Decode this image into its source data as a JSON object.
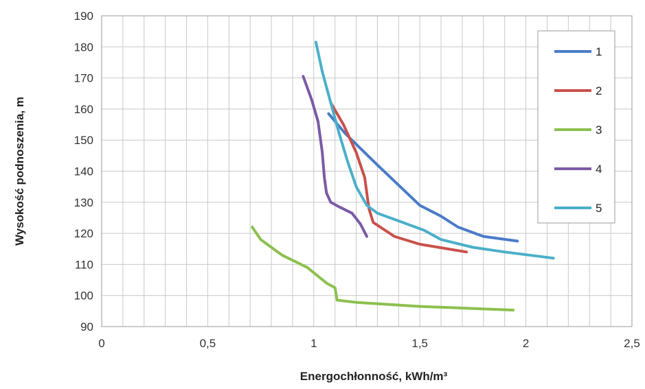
{
  "chart_data": {
    "type": "line",
    "xlabel": "Energochłonność, kWh/m³",
    "ylabel": "Wysokość podnoszenia, m",
    "xlim": [
      0,
      2.5
    ],
    "ylim": [
      90,
      190
    ],
    "x_ticks": [
      "0",
      "0,5",
      "1",
      "1,5",
      "2",
      "2,5"
    ],
    "x_tick_values": [
      0,
      0.5,
      1,
      1.5,
      2,
      2.5
    ],
    "y_ticks": [
      "90",
      "100",
      "110",
      "120",
      "130",
      "140",
      "150",
      "160",
      "170",
      "180",
      "190"
    ],
    "y_tick_values": [
      90,
      100,
      110,
      120,
      130,
      140,
      150,
      160,
      170,
      180,
      190
    ],
    "grid": {
      "x_step": 0.1,
      "y_step": 10
    },
    "legend_position": "right",
    "series": [
      {
        "name": "1",
        "color": "#4a7bc8",
        "points": [
          [
            1.07,
            158.5
          ],
          [
            1.15,
            152
          ],
          [
            1.3,
            142
          ],
          [
            1.5,
            129
          ],
          [
            1.6,
            125.5
          ],
          [
            1.68,
            122
          ],
          [
            1.8,
            119
          ],
          [
            1.96,
            117.5
          ]
        ]
      },
      {
        "name": "2",
        "color": "#c9504a",
        "points": [
          [
            1.08,
            162
          ],
          [
            1.14,
            155
          ],
          [
            1.2,
            146
          ],
          [
            1.24,
            138
          ],
          [
            1.26,
            128
          ],
          [
            1.28,
            123.5
          ],
          [
            1.38,
            119
          ],
          [
            1.5,
            116.5
          ],
          [
            1.72,
            114
          ]
        ]
      },
      {
        "name": "3",
        "color": "#8dc04f",
        "points": [
          [
            0.71,
            122
          ],
          [
            0.75,
            118
          ],
          [
            0.85,
            113
          ],
          [
            0.97,
            109
          ],
          [
            1.06,
            104
          ],
          [
            1.1,
            102.5
          ],
          [
            1.11,
            98.5
          ],
          [
            1.2,
            97.8
          ],
          [
            1.5,
            96.5
          ],
          [
            1.94,
            95.3
          ]
        ]
      },
      {
        "name": "4",
        "color": "#7b5aa6",
        "points": [
          [
            0.95,
            170.5
          ],
          [
            0.99,
            163
          ],
          [
            1.02,
            156
          ],
          [
            1.04,
            146
          ],
          [
            1.05,
            138
          ],
          [
            1.06,
            133
          ],
          [
            1.08,
            130
          ],
          [
            1.12,
            128.5
          ],
          [
            1.18,
            126.5
          ],
          [
            1.22,
            123
          ],
          [
            1.25,
            119
          ]
        ]
      },
      {
        "name": "5",
        "color": "#4bafc9",
        "points": [
          [
            1.01,
            181.5
          ],
          [
            1.04,
            172
          ],
          [
            1.08,
            162
          ],
          [
            1.12,
            152
          ],
          [
            1.16,
            143
          ],
          [
            1.2,
            135
          ],
          [
            1.25,
            129
          ],
          [
            1.3,
            126.5
          ],
          [
            1.4,
            124
          ],
          [
            1.52,
            121
          ],
          [
            1.6,
            118
          ],
          [
            1.75,
            115.5
          ],
          [
            1.9,
            114
          ],
          [
            2.13,
            112
          ]
        ]
      }
    ]
  }
}
